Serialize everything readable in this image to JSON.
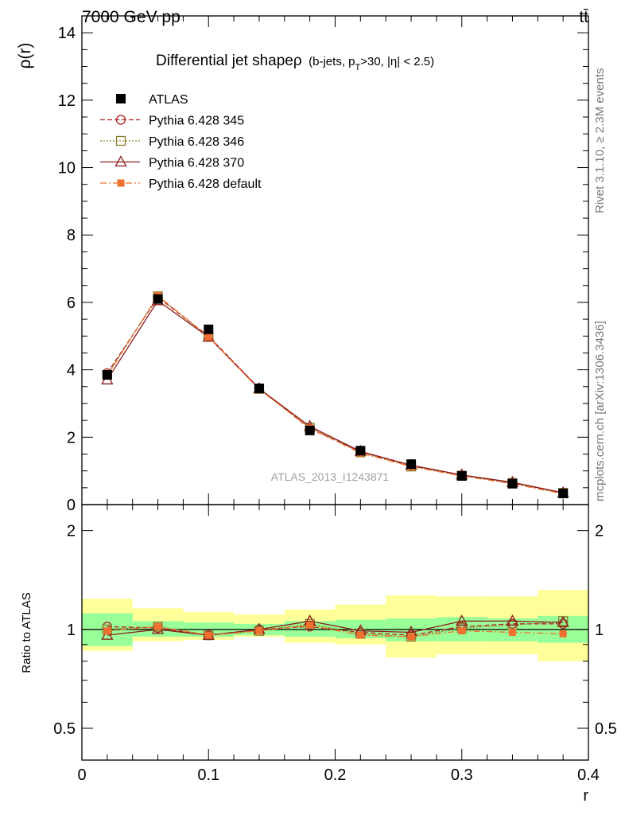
{
  "header": {
    "energy_label": "7000 GeV pp",
    "process_label": "tt̄"
  },
  "side": {
    "rivet_label": "Rivet 3.1.10, ≥ 2.3M events",
    "site_label": "mcplots.cern.ch [arXiv:1306.3436]"
  },
  "chart_data": [
    {
      "type": "line",
      "title": "Differential jet shapeρ (b-jets, pT>30, |η| < 2.5)",
      "title_main": "Differential jet shapeρ",
      "title_sub": "(b-jets, p",
      "title_sub_index": "T",
      "title_sub_rest": ">30, |η| < 2.5)",
      "watermark": "ATLAS_2013_I1243871",
      "xlabel": "r",
      "ylabel": "ρ(r)",
      "xlim": [
        0,
        0.4
      ],
      "ylim": [
        0,
        14.5
      ],
      "x_ticks": [
        0,
        0.1,
        0.2,
        0.3,
        0.4
      ],
      "x_tick_labels": [
        "0",
        "0.1",
        "0.2",
        "0.3",
        "0.4"
      ],
      "y_ticks": [
        0,
        2,
        4,
        6,
        8,
        10,
        12,
        14
      ],
      "y_tick_labels": [
        "0",
        "2",
        "4",
        "6",
        "8",
        "10",
        "12",
        "14"
      ],
      "legend_position": "top-left",
      "x": [
        0.02,
        0.06,
        0.1,
        0.14,
        0.18,
        0.22,
        0.26,
        0.3,
        0.34,
        0.38
      ],
      "series": [
        {
          "name": "ATLAS",
          "color": "#000000",
          "marker": "square-filled",
          "values": [
            3.85,
            6.1,
            5.2,
            3.45,
            2.2,
            1.6,
            1.2,
            0.85,
            0.62,
            0.33
          ]
        },
        {
          "name": "Pythia 6.428 345",
          "color": "#b22222",
          "marker": "circle-open",
          "line": "dashed",
          "values": [
            3.9,
            6.15,
            5.0,
            3.45,
            2.25,
            1.57,
            1.15,
            0.87,
            0.65,
            0.34
          ]
        },
        {
          "name": "Pythia 6.428 346",
          "color": "#8b7d2a",
          "marker": "square-open",
          "line": "dotted",
          "values": [
            3.85,
            6.18,
            4.98,
            3.43,
            2.28,
            1.55,
            1.13,
            0.86,
            0.64,
            0.35
          ]
        },
        {
          "name": "Pythia 6.428 370",
          "color": "#8b1a1a",
          "marker": "triangle-open",
          "line": "solid",
          "values": [
            3.7,
            6.05,
            4.97,
            3.44,
            2.32,
            1.58,
            1.17,
            0.88,
            0.66,
            0.35
          ]
        },
        {
          "name": "Pythia 6.428 default",
          "color": "#f07030",
          "marker": "square-filled-small",
          "line": "dashdot",
          "values": [
            3.82,
            6.2,
            4.98,
            3.42,
            2.27,
            1.53,
            1.13,
            0.85,
            0.62,
            0.32
          ]
        }
      ]
    },
    {
      "type": "line",
      "ylabel": "Ratio to ATLAS",
      "xlabel": "r",
      "xlim": [
        0,
        0.4
      ],
      "ylim": [
        0.4,
        2.4
      ],
      "y_log": true,
      "y_ticks": [
        0.5,
        1,
        2
      ],
      "y_tick_labels": [
        "0.5",
        "1",
        "2"
      ],
      "x_ticks": [
        0,
        0.1,
        0.2,
        0.3,
        0.4
      ],
      "x_tick_labels": [
        "0",
        "0.1",
        "0.2",
        "0.3",
        "0.4"
      ],
      "bin_edges": [
        0,
        0.04,
        0.08,
        0.12,
        0.16,
        0.2,
        0.24,
        0.28,
        0.32,
        0.36,
        0.4
      ],
      "band_inner": {
        "color": "#99ff99",
        "low": [
          0.89,
          0.95,
          0.95,
          0.96,
          0.95,
          0.94,
          0.92,
          0.92,
          0.92,
          0.91
        ],
        "high": [
          1.12,
          1.06,
          1.05,
          1.04,
          1.06,
          1.07,
          1.08,
          1.09,
          1.08,
          1.1
        ]
      },
      "band_outer": {
        "color": "#ffff99",
        "low": [
          0.86,
          0.92,
          0.93,
          0.95,
          0.91,
          0.9,
          0.82,
          0.84,
          0.84,
          0.8
        ],
        "high": [
          1.24,
          1.16,
          1.13,
          1.11,
          1.15,
          1.19,
          1.27,
          1.26,
          1.26,
          1.32
        ]
      },
      "x": [
        0.02,
        0.06,
        0.1,
        0.14,
        0.18,
        0.22,
        0.26,
        0.3,
        0.34,
        0.38
      ],
      "series": [
        {
          "name": "Pythia 6.428 345",
          "color": "#b22222",
          "marker": "circle-open",
          "line": "dashed",
          "values": [
            1.02,
            1.01,
            0.96,
            1.0,
            1.02,
            0.98,
            0.96,
            1.02,
            1.04,
            1.04
          ]
        },
        {
          "name": "Pythia 6.428 346",
          "color": "#8b7d2a",
          "marker": "square-open",
          "line": "dotted",
          "values": [
            1.0,
            1.02,
            0.96,
            0.99,
            1.04,
            0.97,
            0.95,
            1.01,
            1.03,
            1.06
          ]
        },
        {
          "name": "Pythia 6.428 370",
          "color": "#8b1a1a",
          "marker": "triangle-open",
          "line": "solid",
          "values": [
            0.96,
            1.0,
            0.96,
            1.0,
            1.06,
            0.99,
            0.98,
            1.06,
            1.06,
            1.05
          ]
        },
        {
          "name": "Pythia 6.428 default",
          "color": "#f07030",
          "marker": "square-filled-small",
          "line": "dashdot",
          "values": [
            0.99,
            1.02,
            0.96,
            0.99,
            1.03,
            0.96,
            0.95,
            0.99,
            0.98,
            0.97
          ]
        }
      ]
    }
  ]
}
